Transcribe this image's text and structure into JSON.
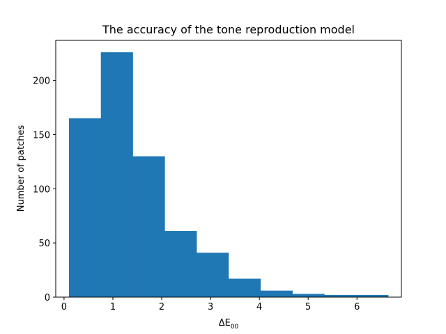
{
  "chart_data": {
    "type": "bar",
    "subtype": "histogram",
    "title": "The accuracy of the tone reproduction model",
    "xlabel": "ΔE",
    "xlabel_subscript": "00",
    "ylabel": "Number of patches",
    "bin_edges": [
      0.1,
      0.754,
      1.408,
      2.062,
      2.716,
      3.37,
      4.024,
      4.678,
      5.332,
      5.986,
      6.64
    ],
    "values": [
      165,
      226,
      130,
      61,
      41,
      17,
      6,
      3,
      2,
      2
    ],
    "xlim": [
      -0.17,
      6.91
    ],
    "ylim": [
      0,
      237
    ],
    "xticks": [
      0,
      1,
      2,
      3,
      4,
      5,
      6
    ],
    "yticks": [
      0,
      50,
      100,
      150,
      200
    ],
    "bar_color": "#1f77b4",
    "grid": false,
    "legend": "none"
  }
}
